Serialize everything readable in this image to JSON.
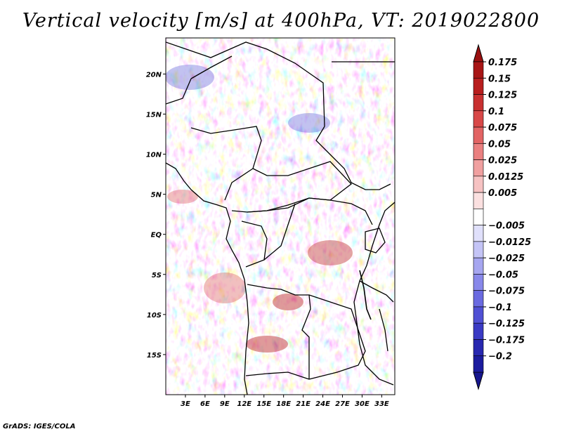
{
  "title": "Vertical velocity [m/s] at 400hPa, VT: 2019022800",
  "credit": "GrADS: IGES/COLA",
  "map": {
    "lon_range": [
      0,
      35
    ],
    "lat_range": [
      -20,
      24.5
    ],
    "lat_ticks": [
      {
        "value": 20,
        "label": "20N"
      },
      {
        "value": 15,
        "label": "15N"
      },
      {
        "value": 10,
        "label": "10N"
      },
      {
        "value": 5,
        "label": "5N"
      },
      {
        "value": 0,
        "label": "EQ"
      },
      {
        "value": -5,
        "label": "5S"
      },
      {
        "value": -10,
        "label": "10S"
      },
      {
        "value": -15,
        "label": "15S"
      }
    ],
    "lon_ticks": [
      {
        "value": 3,
        "label": "3E"
      },
      {
        "value": 6,
        "label": "6E"
      },
      {
        "value": 9,
        "label": "9E"
      },
      {
        "value": 12,
        "label": "12E"
      },
      {
        "value": 15,
        "label": "15E"
      },
      {
        "value": 18,
        "label": "18E"
      },
      {
        "value": 21,
        "label": "21E"
      },
      {
        "value": 24,
        "label": "24E"
      },
      {
        "value": 27,
        "label": "27E"
      },
      {
        "value": 30,
        "label": "30E"
      },
      {
        "value": 33,
        "label": "33E"
      }
    ]
  },
  "colorbar": {
    "levels": [
      {
        "label": "0.175",
        "color": "#a81616"
      },
      {
        "label": "0.15",
        "color": "#b81e1e"
      },
      {
        "label": "0.125",
        "color": "#c83030"
      },
      {
        "label": "0.1",
        "color": "#d84848"
      },
      {
        "label": "0.075",
        "color": "#e26464"
      },
      {
        "label": "0.05",
        "color": "#ea8080"
      },
      {
        "label": "0.025",
        "color": "#f0a0a0"
      },
      {
        "label": "0.0125",
        "color": "#f6c2c2"
      },
      {
        "label": "0.005",
        "color": "#fbe0e0"
      },
      {
        "label": "",
        "color": "#ffffff"
      },
      {
        "label": "−0.005",
        "color": "#e0e0fb"
      },
      {
        "label": "−0.0125",
        "color": "#c4c4f6"
      },
      {
        "label": "−0.025",
        "color": "#a6a6f0"
      },
      {
        "label": "−0.05",
        "color": "#8888ea"
      },
      {
        "label": "−0.075",
        "color": "#6a6ae0"
      },
      {
        "label": "−0.1",
        "color": "#5050d4"
      },
      {
        "label": "−0.125",
        "color": "#3a3ac4"
      },
      {
        "label": "−0.175",
        "color": "#2828b0"
      },
      {
        "label": "−0.2",
        "color": "#1c1c9e"
      }
    ],
    "top_cap_color": "#9a1010",
    "bottom_cap_color": "#16168e"
  }
}
